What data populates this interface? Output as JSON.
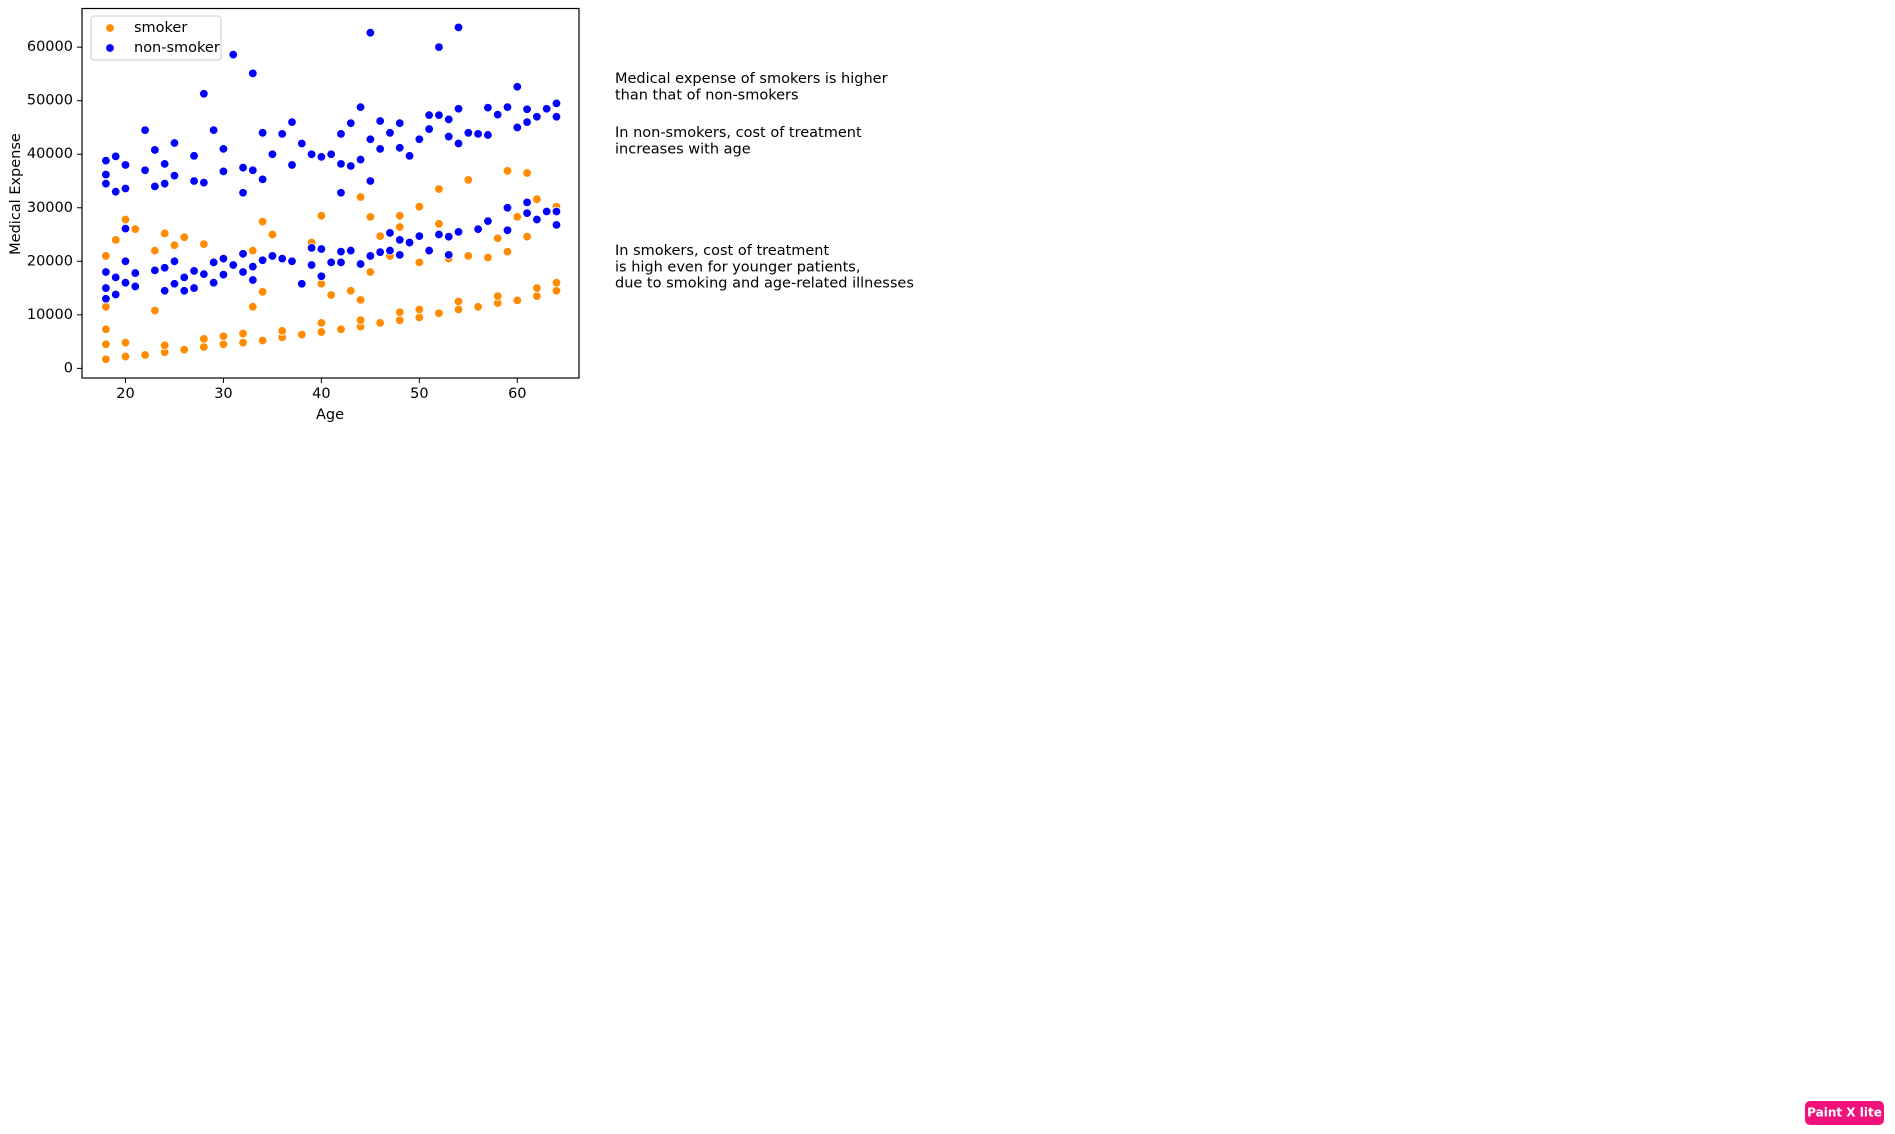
{
  "chart_data": {
    "type": "scatter",
    "xlabel": "Age",
    "ylabel": "Medical Expense",
    "xlim": [
      15.56,
      66.3
    ],
    "ylim": [
      -1800,
      67220
    ],
    "xticks": [
      20,
      30,
      40,
      50,
      60
    ],
    "yticks": [
      0,
      10000,
      20000,
      30000,
      40000,
      50000,
      60000
    ],
    "grid": false,
    "legend": "upper left",
    "annotations": [
      [
        "Medical expense of smokers is higher",
        "than that of non-smokers"
      ],
      [
        "In non-smokers, cost of treatment",
        "increases with age"
      ],
      [
        "In smokers, cost of treatment",
        "is high even for younger patients,",
        "due to smoking and age-related illnesses"
      ]
    ],
    "series": [
      {
        "name": "smoker",
        "color": "#ff8c00",
        "x": [
          18,
          18,
          20,
          20,
          22,
          24,
          24,
          26,
          28,
          28,
          30,
          30,
          32,
          32,
          34,
          36,
          36,
          38,
          40,
          40,
          42,
          44,
          44,
          46,
          48,
          48,
          50,
          50,
          52,
          54,
          54,
          56,
          58,
          58,
          60,
          62,
          62,
          64,
          64,
          18,
          18,
          18,
          19,
          20,
          21,
          23,
          23,
          24,
          25,
          26,
          28,
          29,
          32,
          33,
          33,
          34,
          34,
          35,
          39,
          40,
          40,
          41,
          43,
          44,
          44,
          45,
          45,
          46,
          47,
          48,
          48,
          50,
          50,
          52,
          52,
          53,
          55,
          55,
          57,
          58,
          59,
          59,
          60,
          61,
          61,
          62,
          64
        ],
        "values": [
          1700,
          4500,
          2200,
          4800,
          2500,
          3000,
          4300,
          3500,
          4000,
          5500,
          4500,
          6000,
          4800,
          6500,
          5200,
          5800,
          7000,
          6300,
          6800,
          8500,
          7300,
          7800,
          9000,
          8500,
          9000,
          10500,
          9500,
          11000,
          10300,
          11000,
          12500,
          11500,
          12200,
          13500,
          12700,
          13500,
          15000,
          14500,
          16000,
          21000,
          11500,
          7300,
          24000,
          27800,
          26000,
          22000,
          10800,
          25200,
          23000,
          24500,
          23200,
          20000,
          18000,
          22000,
          11500,
          27400,
          14300,
          25000,
          23500,
          28500,
          15800,
          13700,
          14500,
          32000,
          12800,
          28300,
          18000,
          24700,
          21000,
          28500,
          26400,
          30200,
          19800,
          33500,
          27000,
          20500,
          35200,
          21000,
          20700,
          24300,
          36900,
          21800,
          28300,
          36500,
          24600,
          31600,
          30200
        ]
      },
      {
        "name": "non-smoker",
        "color": "#0000ff",
        "x": [
          18,
          18,
          18,
          19,
          19,
          20,
          20,
          22,
          22,
          23,
          23,
          24,
          24,
          25,
          25,
          27,
          27,
          28,
          28,
          29,
          30,
          30,
          31,
          32,
          32,
          33,
          33,
          34,
          34,
          35,
          36,
          37,
          37,
          38,
          39,
          40,
          41,
          42,
          42,
          43,
          43,
          44,
          44,
          45,
          45,
          45,
          46,
          46,
          47,
          48,
          48,
          49,
          50,
          51,
          51,
          52,
          52,
          53,
          53,
          54,
          54,
          54,
          55,
          56,
          57,
          57,
          58,
          59,
          60,
          60,
          61,
          61,
          62,
          63,
          64,
          64,
          18,
          18,
          18,
          19,
          19,
          20,
          20,
          20,
          21,
          21,
          23,
          24,
          24,
          25,
          25,
          26,
          26,
          27,
          27,
          28,
          29,
          29,
          30,
          30,
          31,
          32,
          32,
          33,
          33,
          34,
          35,
          36,
          37,
          38,
          39,
          39,
          40,
          40,
          41,
          42,
          42,
          42,
          43,
          44,
          45,
          46,
          47,
          47,
          48,
          48,
          49,
          50,
          51,
          52,
          53,
          53,
          54,
          56,
          57,
          59,
          59,
          61,
          61,
          62,
          63,
          64,
          64
        ],
        "values": [
          38800,
          36200,
          34500,
          39600,
          33000,
          38000,
          33600,
          44500,
          37000,
          40800,
          34000,
          38200,
          34500,
          42100,
          36000,
          39700,
          35000,
          51300,
          34700,
          44500,
          41000,
          36800,
          58600,
          37500,
          32800,
          55100,
          37000,
          44000,
          35300,
          40000,
          43800,
          46000,
          38000,
          42000,
          40000,
          39500,
          40000,
          43800,
          38200,
          45800,
          37800,
          48800,
          39000,
          62700,
          42800,
          35000,
          46200,
          41000,
          44000,
          45800,
          41200,
          39700,
          42800,
          47300,
          44700,
          60000,
          47300,
          46500,
          43300,
          63700,
          48500,
          42000,
          44000,
          43800,
          48700,
          43600,
          47400,
          48800,
          52600,
          45000,
          48400,
          46000,
          47000,
          48500,
          49500,
          47000,
          18000,
          15000,
          13000,
          17000,
          13800,
          26100,
          20000,
          16000,
          17800,
          15300,
          18300,
          18800,
          14500,
          20000,
          15800,
          17000,
          14500,
          18200,
          15000,
          17600,
          19800,
          16000,
          20500,
          17500,
          19300,
          21400,
          18000,
          19000,
          16500,
          20200,
          21000,
          20500,
          20000,
          15800,
          22500,
          19300,
          22300,
          17200,
          19800,
          32800,
          21800,
          19800,
          22000,
          19500,
          21000,
          21700,
          25300,
          22000,
          24000,
          21200,
          23500,
          24700,
          22000,
          25000,
          24600,
          21200,
          25500,
          26000,
          27500,
          30000,
          25800,
          31000,
          29000,
          27800,
          29300,
          29300,
          26800
        ]
      }
    ]
  },
  "watermark": "Paint X lite"
}
